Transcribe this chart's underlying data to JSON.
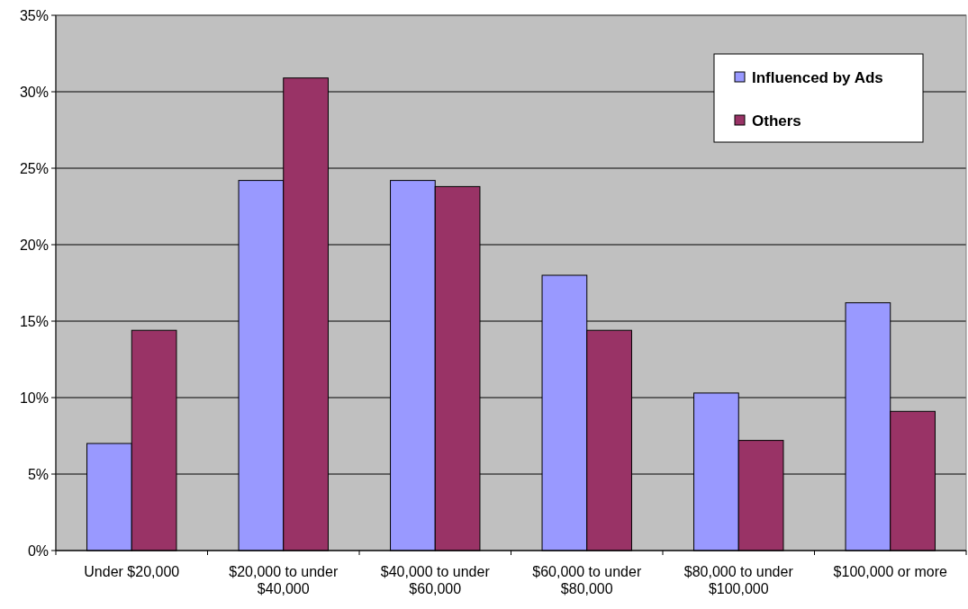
{
  "chart_data": {
    "type": "bar",
    "categories": [
      "Under $20,000",
      "$20,000 to under $40,000",
      "$40,000 to under $60,000",
      "$60,000 to under $80,000",
      "$80,000 to under $100,000",
      "$100,000 or more"
    ],
    "series": [
      {
        "name": "Influenced by Ads",
        "color": "#9999ff",
        "values": [
          7.0,
          24.2,
          24.2,
          18.0,
          10.3,
          16.2
        ]
      },
      {
        "name": "Others",
        "color": "#993366",
        "values": [
          14.4,
          30.9,
          23.8,
          14.4,
          7.2,
          9.1
        ]
      }
    ],
    "ylim": [
      0,
      35
    ],
    "yticks": [
      {
        "value": 0,
        "label": "0%"
      },
      {
        "value": 5,
        "label": "5%"
      },
      {
        "value": 10,
        "label": "10%"
      },
      {
        "value": 15,
        "label": "15%"
      },
      {
        "value": 20,
        "label": "20%"
      },
      {
        "value": 25,
        "label": "25%"
      },
      {
        "value": 30,
        "label": "30%"
      },
      {
        "value": 35,
        "label": "35%"
      }
    ],
    "grid": "y",
    "legend": "top right"
  }
}
